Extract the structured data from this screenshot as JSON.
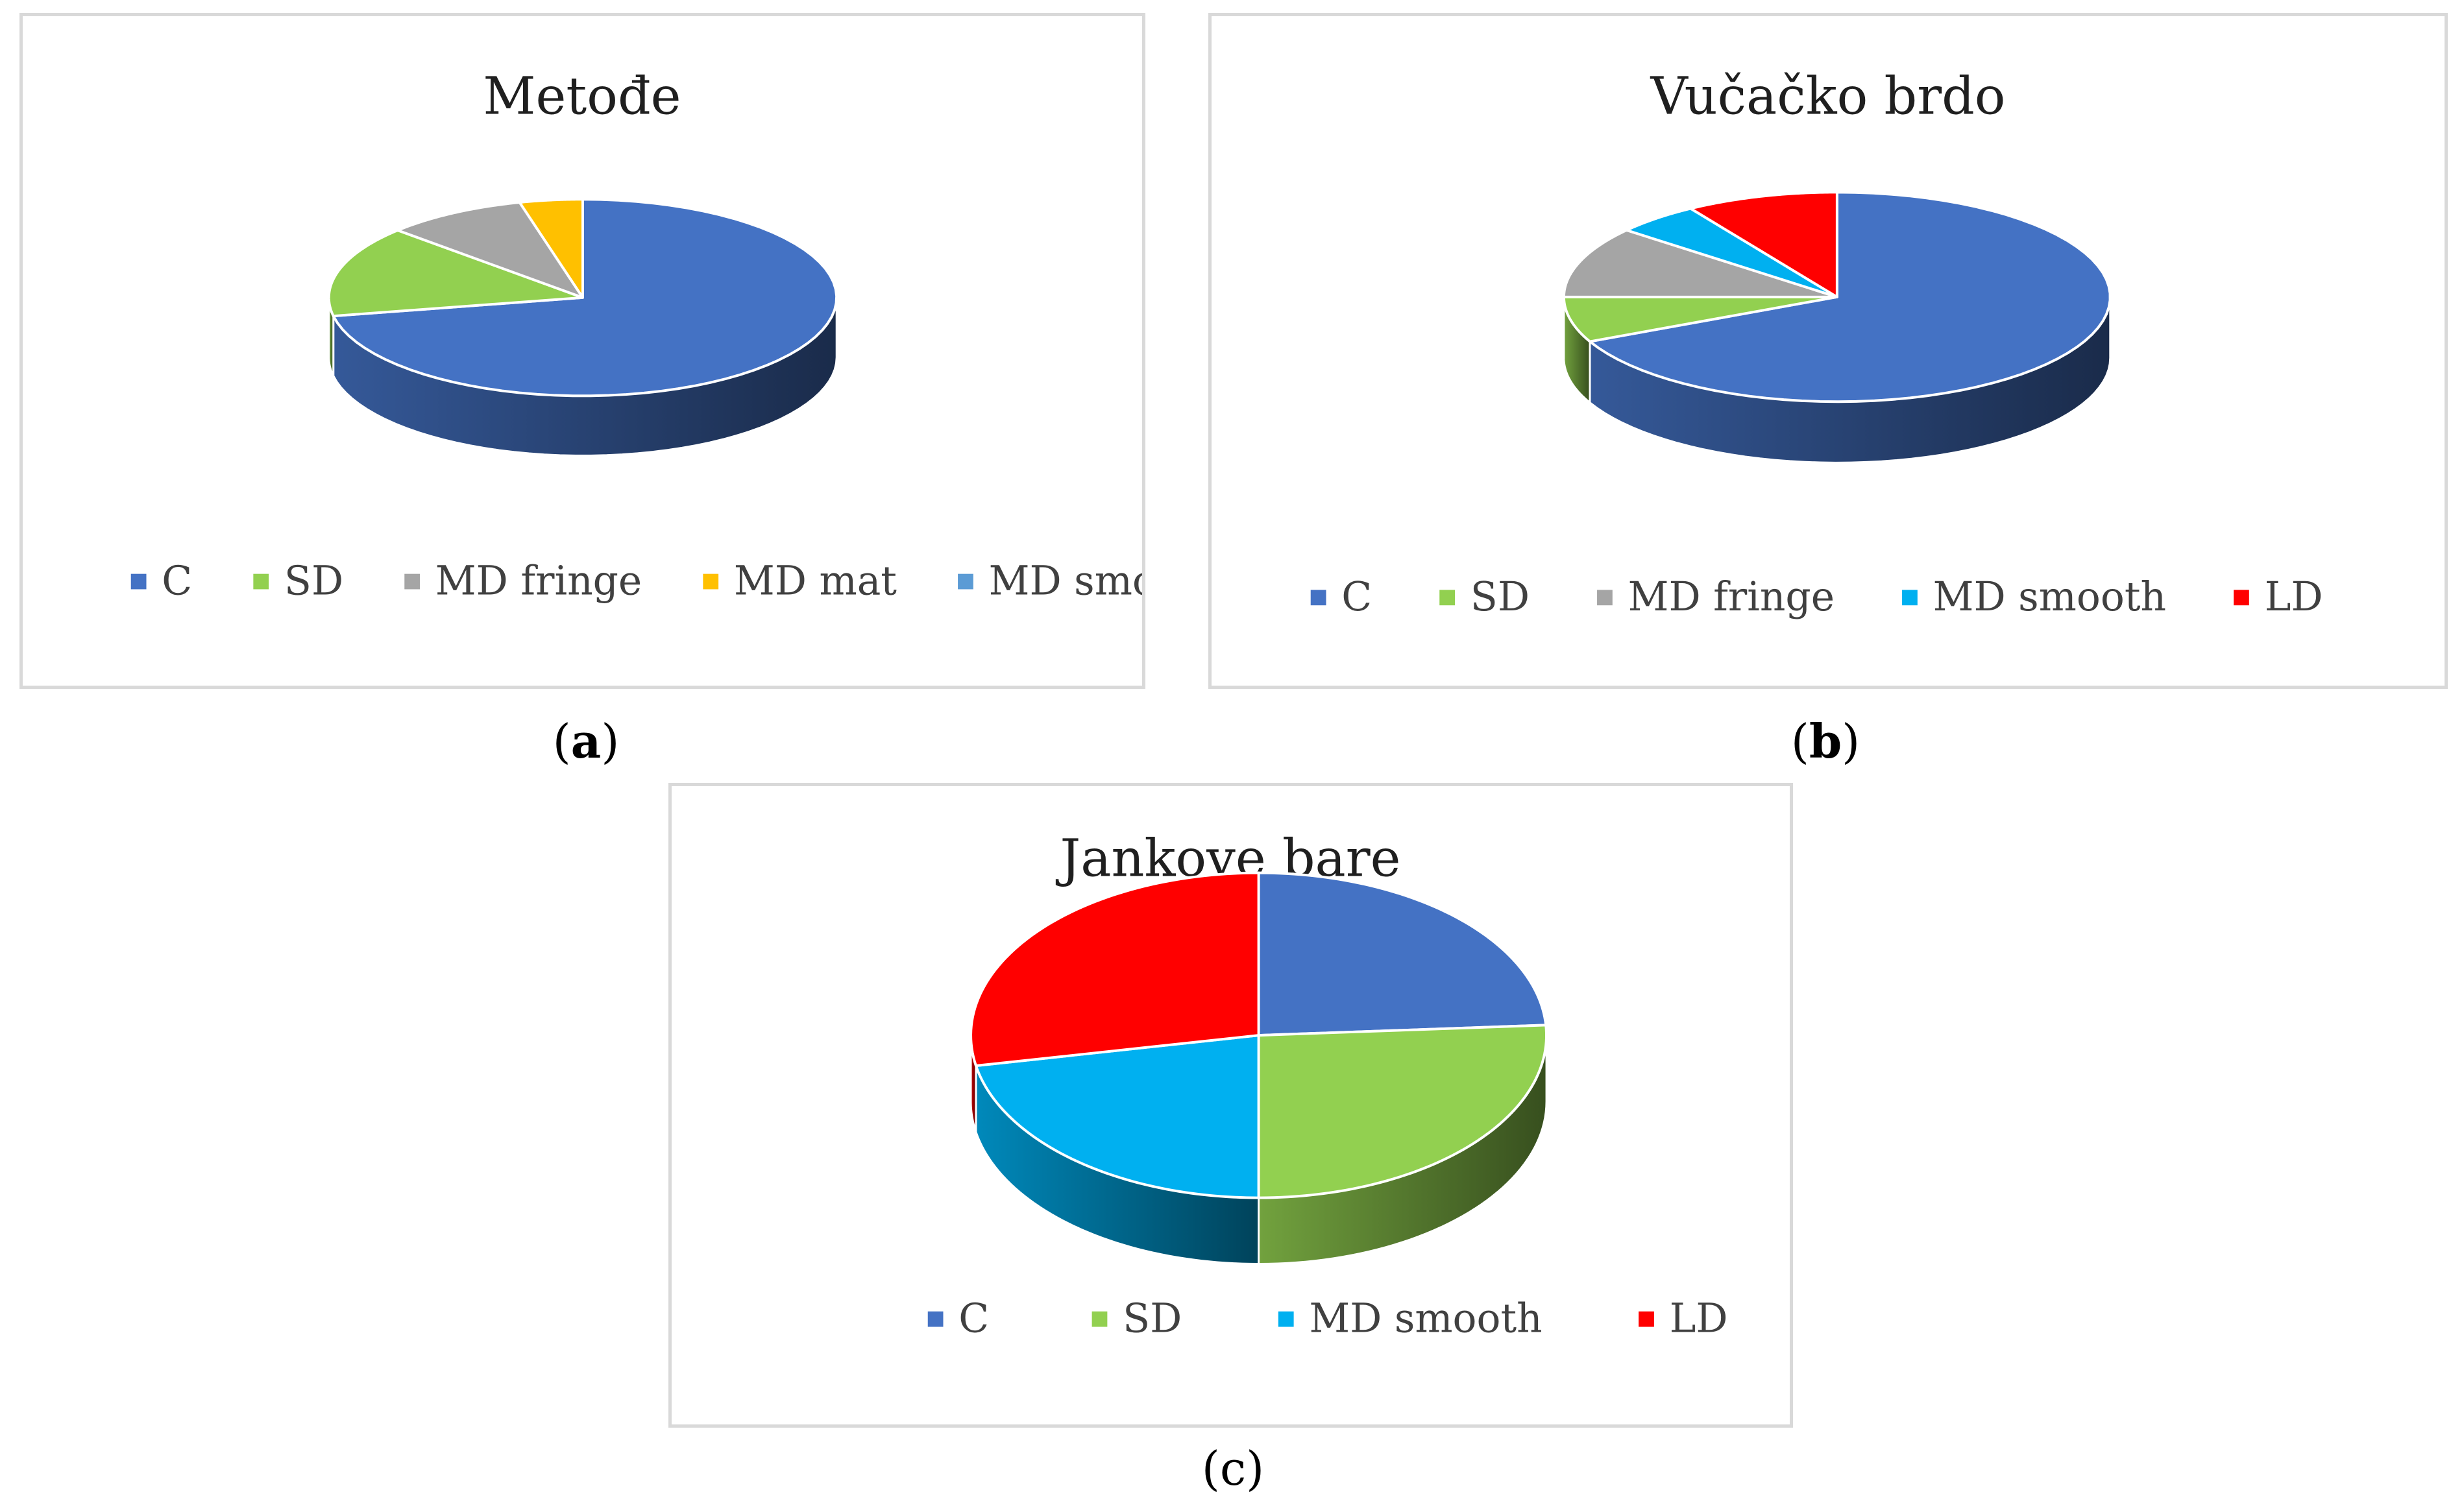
{
  "chart_data": [
    {
      "type": "pie",
      "style": "3d",
      "title": "Metođe",
      "start_angle_deg": 0,
      "categories": [
        "C",
        "SD",
        "MD fringe",
        "MD mat",
        "MD smooth"
      ],
      "values": [
        72,
        15,
        9,
        4,
        0
      ],
      "colors": [
        "#4472c4",
        "#92d050",
        "#a5a5a5",
        "#ffc000",
        "#5b9bd5"
      ],
      "legend_position": "bottom",
      "caption": {
        "open": "(",
        "letter": "a",
        "close": ")"
      }
    },
    {
      "type": "pie",
      "style": "3d",
      "title": "Vučačko brdo",
      "start_angle_deg": 0,
      "categories": [
        "C",
        "SD",
        "MD fringe",
        "MD smooth",
        "LD"
      ],
      "values": [
        68,
        7,
        11,
        5,
        9
      ],
      "colors": [
        "#4472c4",
        "#92d050",
        "#a5a5a5",
        "#00b0f0",
        "#ff0000"
      ],
      "legend_position": "bottom",
      "caption": {
        "open": "(",
        "letter": "b",
        "close": ")"
      }
    },
    {
      "type": "pie",
      "style": "3d",
      "title": "Jankove bare",
      "start_angle_deg": 0,
      "categories": [
        "C",
        "SD",
        "MD smooth",
        "LD"
      ],
      "values": [
        24,
        26,
        22,
        28
      ],
      "colors": [
        "#4472c4",
        "#92d050",
        "#00b0f0",
        "#ff0000"
      ],
      "legend_position": "bottom",
      "caption": {
        "open": "(",
        "letter": "c",
        "close": ")"
      }
    }
  ]
}
